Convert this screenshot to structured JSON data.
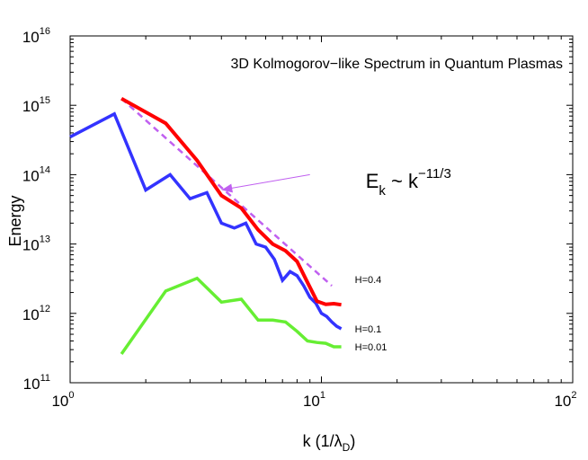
{
  "chart_data": {
    "type": "line",
    "title": "3D Kolmogorov−like Spectrum in Quantum Plasmas",
    "xlabel": "k (1/λ",
    "xlabel_sub": "D",
    "xlabel_close": ")",
    "ylabel": "Energy",
    "xscale": "log",
    "yscale": "log",
    "xlim": [
      1,
      100
    ],
    "ylim": [
      100000000000.0,
      1e+16
    ],
    "grid": false,
    "x_ticks": [
      {
        "base": "10",
        "exp": "0",
        "value": 1
      },
      {
        "base": "10",
        "exp": "1",
        "value": 10
      },
      {
        "base": "10",
        "exp": "2",
        "value": 100
      }
    ],
    "y_ticks": [
      {
        "base": "10",
        "exp": "11",
        "value": 100000000000.0
      },
      {
        "base": "10",
        "exp": "12",
        "value": 1000000000000.0
      },
      {
        "base": "10",
        "exp": "13",
        "value": 10000000000000.0
      },
      {
        "base": "10",
        "exp": "14",
        "value": 100000000000000.0
      },
      {
        "base": "10",
        "exp": "15",
        "value": 1000000000000000.0
      },
      {
        "base": "10",
        "exp": "16",
        "value": 1e+16
      }
    ],
    "series": [
      {
        "name": "H=0.4",
        "color": "#ff0000",
        "x": [
          1.6,
          2.4,
          3.2,
          4.0,
          4.8,
          5.6,
          6.4,
          7.2,
          8.0,
          8.8,
          9.6,
          10.4,
          11.2,
          12.0
        ],
        "y": [
          1250000000000000.0,
          550000000000000.0,
          160000000000000.0,
          50000000000000.0,
          33000000000000.0,
          16000000000000.0,
          10000000000000.0,
          8000000000000.0,
          5600000000000.0,
          2800000000000.0,
          1500000000000.0,
          1350000000000.0,
          1380000000000.0,
          1330000000000.0
        ]
      },
      {
        "name": "H=0.1",
        "color": "#3333ff",
        "x": [
          1.0,
          1.5,
          2.0,
          2.5,
          3.0,
          3.5,
          4.0,
          4.5,
          5.0,
          5.5,
          6.0,
          6.5,
          7.0,
          7.5,
          8.0,
          8.5,
          9.0,
          9.5,
          10.0,
          10.5,
          11.0,
          11.5,
          12.0
        ],
        "y": [
          350000000000000.0,
          750000000000000.0,
          60000000000000.0,
          100000000000000.0,
          45000000000000.0,
          55000000000000.0,
          20000000000000.0,
          17000000000000.0,
          20000000000000.0,
          10000000000000.0,
          9000000000000.0,
          6000000000000.0,
          3000000000000.0,
          4000000000000.0,
          3500000000000.0,
          2500000000000.0,
          1700000000000.0,
          1400000000000.0,
          1000000000000.0,
          900000000000.0,
          750000000000.0,
          650000000000.0,
          600000000000.0
        ]
      },
      {
        "name": "H=0.01",
        "color": "#66ee33",
        "x": [
          1.6,
          2.4,
          3.2,
          4.0,
          4.8,
          5.6,
          6.4,
          7.2,
          8.0,
          8.8,
          9.6,
          10.4,
          11.2,
          12.0
        ],
        "y": [
          260000000000.0,
          2100000000000.0,
          3200000000000.0,
          1450000000000.0,
          1600000000000.0,
          800000000000.0,
          800000000000.0,
          750000000000.0,
          550000000000.0,
          400000000000.0,
          380000000000.0,
          370000000000.0,
          330000000000.0,
          330000000000.0
        ]
      }
    ],
    "fit_line": {
      "color": "#c060f0",
      "style": "dashed",
      "x": [
        1.6,
        11.0
      ],
      "y": [
        1250000000000000.0,
        2500000000000.0
      ]
    },
    "annotation": {
      "base": "E",
      "sub": "k",
      "tilde": " ~ ",
      "k": "k",
      "sup": "−11/3",
      "arrow_color": "#c060f0",
      "arrow_from": [
        9.0,
        100000000000000.0
      ],
      "arrow_to": [
        4.0,
        60000000000000.0
      ],
      "text_anchor": [
        15.0,
        65000000000000.0
      ]
    }
  }
}
